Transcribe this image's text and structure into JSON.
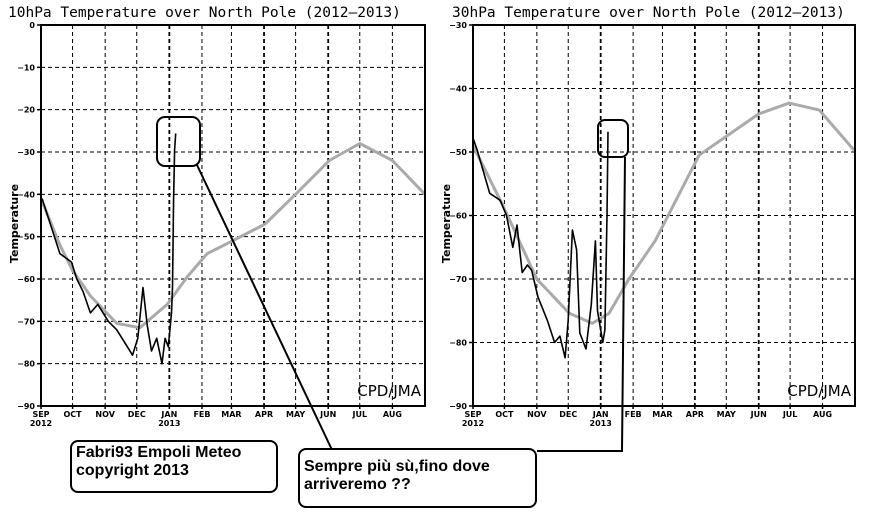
{
  "chart_data": [
    {
      "type": "line",
      "title": "10hPa Temperature over North Pole (2012–2013)",
      "ylabel": "Temperature",
      "xlabel": "",
      "ylim": [
        -90,
        0
      ],
      "yticks": [
        0,
        -10,
        -20,
        -30,
        -40,
        -50,
        -60,
        -70,
        -80,
        -90
      ],
      "ytick_labels": [
        "0",
        "−10",
        "−20",
        "−30",
        "−40",
        "−50",
        "−60",
        "−70",
        "−80",
        "−90"
      ],
      "xlim_days": [
        0,
        365
      ],
      "x_unit": "days since 2012-09-01",
      "xticks": [
        {
          "day": 0,
          "label": "SEP",
          "sub": "2012"
        },
        {
          "day": 30,
          "label": "OCT"
        },
        {
          "day": 61,
          "label": "NOV"
        },
        {
          "day": 91,
          "label": "DEC"
        },
        {
          "day": 122,
          "label": "JAN",
          "sub": "2013"
        },
        {
          "day": 153,
          "label": "FEB"
        },
        {
          "day": 181,
          "label": "MAR"
        },
        {
          "day": 212,
          "label": "APR"
        },
        {
          "day": 242,
          "label": "MAY"
        },
        {
          "day": 273,
          "label": "JUN"
        },
        {
          "day": 303,
          "label": "JUL"
        },
        {
          "day": 334,
          "label": "AUG"
        }
      ],
      "grid": true,
      "source_label": "CPD/JMA",
      "series": [
        {
          "name": "climatology",
          "color": "#aaaaaa",
          "x": [
            0,
            18,
            30,
            47,
            72,
            94,
            120,
            139,
            158,
            182,
            213,
            242,
            274,
            303,
            334,
            365
          ],
          "y": [
            -41,
            -52,
            -58,
            -64,
            -70.5,
            -71.5,
            -66,
            -59.5,
            -54,
            -51,
            -47,
            -40,
            -32,
            -28,
            -32,
            -40
          ]
        },
        {
          "name": "2012-2013",
          "color": "#000000",
          "x": [
            1,
            18,
            29,
            34,
            40,
            47,
            54,
            64,
            72,
            82,
            87,
            92,
            97,
            101,
            105,
            110,
            115,
            118,
            121,
            124,
            125,
            126,
            127,
            128
          ],
          "y": [
            -41,
            -54,
            -56,
            -60,
            -63,
            -68,
            -66,
            -70,
            -72,
            -76,
            -78,
            -74,
            -62,
            -71,
            -77,
            -74,
            -80,
            -74,
            -76,
            -68,
            -62,
            -41,
            -29.5,
            -25.6
          ]
        }
      ]
    },
    {
      "type": "line",
      "title": "30hPa Temperature over North Pole (2012–2013)",
      "ylabel": "Temperature",
      "xlabel": "",
      "ylim": [
        -90,
        -30
      ],
      "yticks": [
        -30,
        -40,
        -50,
        -60,
        -70,
        -80,
        -90
      ],
      "ytick_labels": [
        "−30",
        "−40",
        "−50",
        "−60",
        "−70",
        "−80",
        "−90"
      ],
      "xlim_days": [
        0,
        365
      ],
      "x_unit": "days since 2012-09-01",
      "xticks": [
        {
          "day": 0,
          "label": "SEP",
          "sub": "2012"
        },
        {
          "day": 30,
          "label": "OCT"
        },
        {
          "day": 61,
          "label": "NOV"
        },
        {
          "day": 91,
          "label": "DEC"
        },
        {
          "day": 122,
          "label": "JAN",
          "sub": "2013"
        },
        {
          "day": 153,
          "label": "FEB"
        },
        {
          "day": 181,
          "label": "MAR"
        },
        {
          "day": 212,
          "label": "APR"
        },
        {
          "day": 242,
          "label": "MAY"
        },
        {
          "day": 273,
          "label": "JUN"
        },
        {
          "day": 303,
          "label": "JUL"
        },
        {
          "day": 334,
          "label": "AUG"
        }
      ],
      "grid": true,
      "source_label": "CPD/JMA",
      "series": [
        {
          "name": "climatology",
          "color": "#aaaaaa",
          "x": [
            0,
            29,
            61,
            92,
            114,
            130,
            149,
            174,
            216,
            273,
            302,
            331,
            364
          ],
          "y": [
            -49,
            -58.6,
            -70,
            -75.4,
            -77,
            -75.4,
            -70,
            -64,
            -50.5,
            -44,
            -42.3,
            -43.4,
            -49.7
          ]
        },
        {
          "name": "2012-2013",
          "color": "#000000",
          "x": [
            0,
            4,
            16,
            26,
            32,
            38,
            42,
            47,
            52,
            56,
            62,
            71,
            78,
            83,
            88,
            91,
            95,
            99,
            102,
            108,
            113,
            117,
            119,
            124,
            126,
            128,
            129
          ],
          "y": [
            -47.8,
            -49.7,
            -56.5,
            -57.6,
            -60,
            -65,
            -61.5,
            -69,
            -67.8,
            -68.6,
            -72.8,
            -76.5,
            -80,
            -79,
            -82.4,
            -76.5,
            -62.3,
            -65.4,
            -78.5,
            -81,
            -74,
            -64,
            -75,
            -80,
            -78,
            -60,
            -46.8
          ]
        }
      ]
    }
  ],
  "annotations": {
    "credit_line1": "Fabri93 Empoli Meteo",
    "credit_line2": "copyright 2013",
    "comment_line1": "Sempre più sù,fino dove",
    "comment_line2": "arriveremo ??"
  }
}
